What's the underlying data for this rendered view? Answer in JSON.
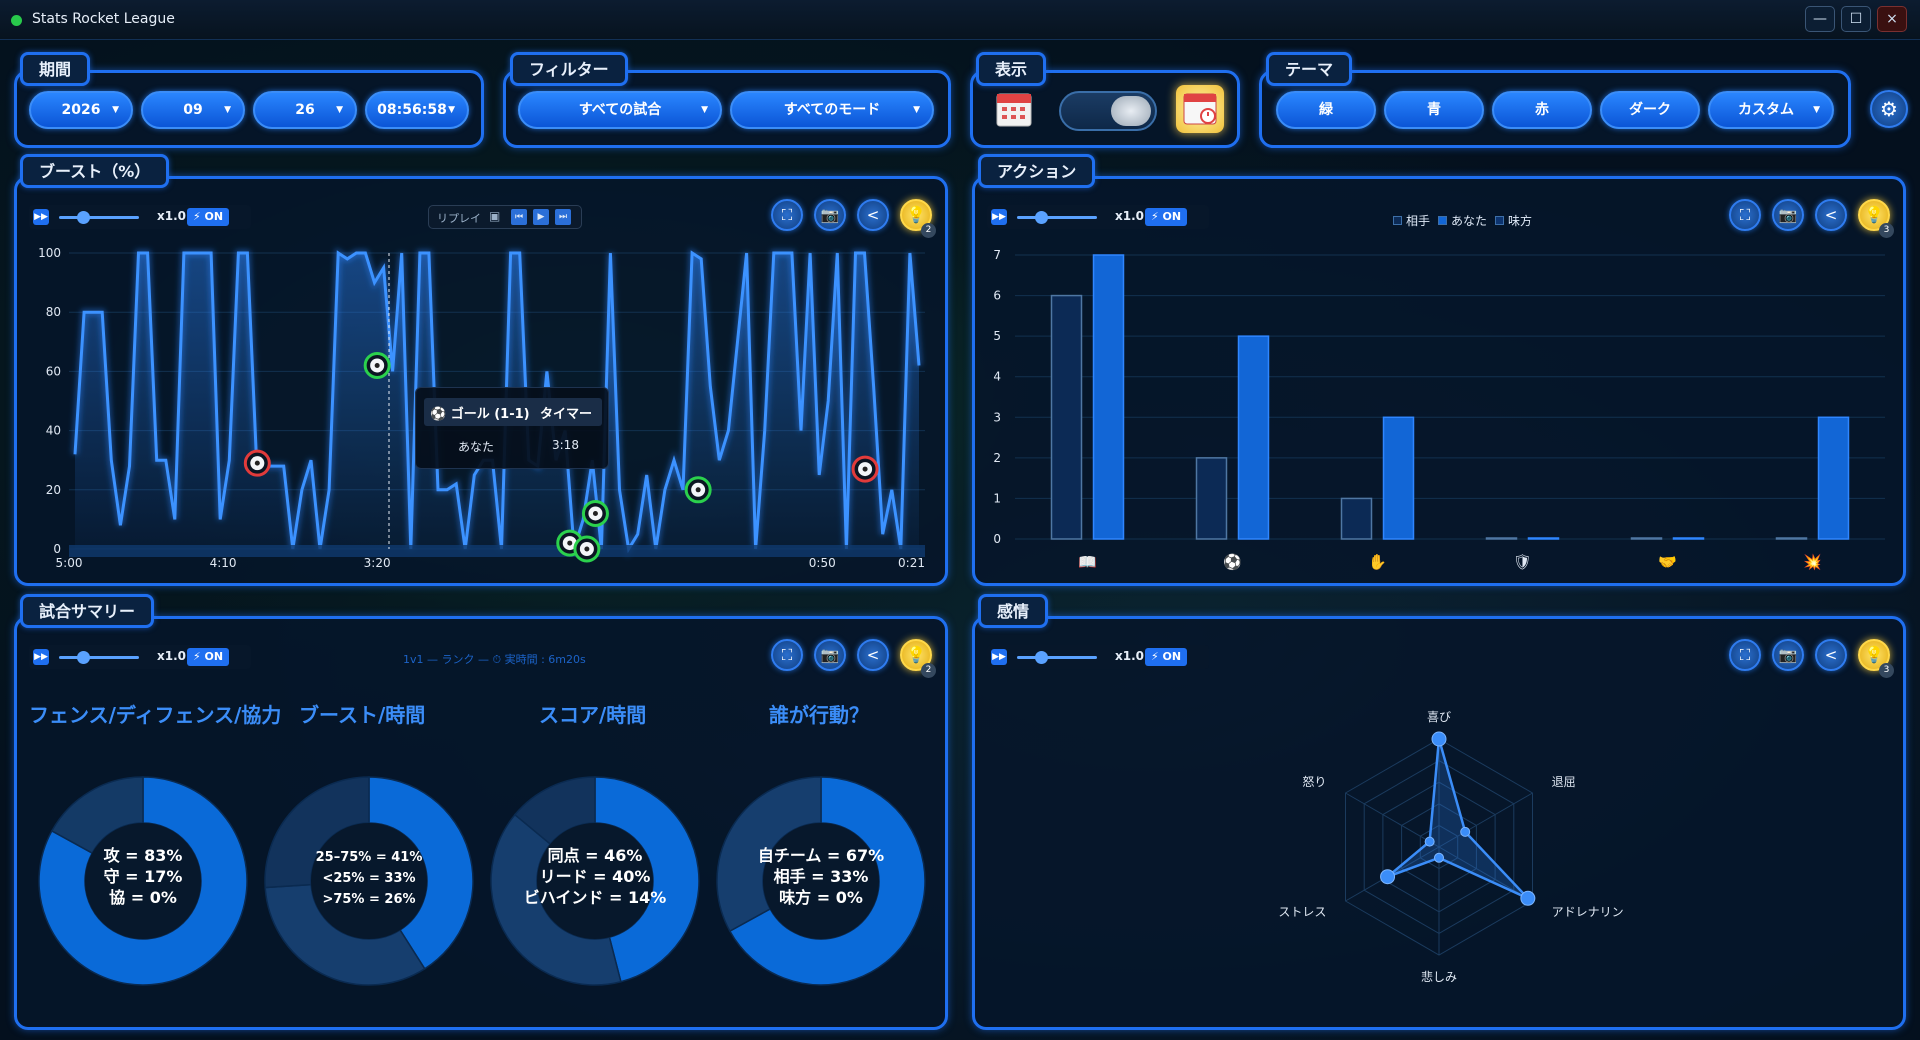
{
  "window": {
    "title": "Stats Rocket League",
    "minimize": "—",
    "maximize": "☐",
    "close": "×"
  },
  "period": {
    "label": "期間",
    "year": "2026",
    "month": "09",
    "day": "26",
    "time": "08:56:58"
  },
  "filter": {
    "label": "フィルター",
    "matches": "すべての試合",
    "modes": "すべてのモード"
  },
  "display": {
    "label": "表示"
  },
  "theme": {
    "label": "テーマ",
    "green": "緑",
    "blue": "青",
    "red": "赤",
    "dark": "ダーク",
    "custom": "カスタム"
  },
  "common": {
    "speed": "x1.0",
    "on": "⚡ ON"
  },
  "boost": {
    "label": "ブースト（%）",
    "replay": "リプレイ",
    "bulb_count": "2",
    "tooltip": {
      "title": "⚽ ゴール (1-1)",
      "col": "タイマー",
      "row_label": "あなた",
      "row_value": "3:18"
    },
    "chart_data": {
      "type": "line",
      "ylim": [
        0,
        100
      ],
      "yticks": [
        "0",
        "20",
        "40",
        "60",
        "80",
        "100"
      ],
      "xticks": [
        "5:00",
        "4:10",
        "3:20",
        "0:50",
        "0:21"
      ],
      "values": [
        32,
        80,
        80,
        80,
        30,
        8,
        28,
        100,
        100,
        30,
        30,
        10,
        100,
        100,
        100,
        100,
        10,
        30,
        100,
        100,
        30,
        28,
        28,
        28,
        0,
        20,
        30,
        0,
        20,
        100,
        98,
        100,
        100,
        90,
        95,
        60,
        100,
        0,
        100,
        100,
        20,
        20,
        22,
        0,
        25,
        30,
        30,
        0,
        100,
        100,
        30,
        28,
        60,
        30,
        40,
        0,
        10,
        30,
        0,
        100,
        20,
        0,
        5,
        25,
        0,
        20,
        30,
        20,
        100,
        98,
        55,
        30,
        40,
        70,
        100,
        0,
        40,
        100,
        100,
        100,
        40,
        100,
        25,
        50,
        100,
        0,
        100,
        100,
        55,
        5,
        20,
        0,
        100,
        62
      ],
      "markers": [
        {
          "kind": "red",
          "x": 0.22,
          "y": 29
        },
        {
          "kind": "green",
          "x": 0.36,
          "y": 62
        },
        {
          "kind": "green",
          "x": 0.585,
          "y": 2
        },
        {
          "kind": "green",
          "x": 0.605,
          "y": 0
        },
        {
          "kind": "green",
          "x": 0.615,
          "y": 12
        },
        {
          "kind": "green",
          "x": 0.735,
          "y": 20
        },
        {
          "kind": "red",
          "x": 0.93,
          "y": 27
        }
      ]
    }
  },
  "actions": {
    "label": "アクション",
    "bulb_count": "3",
    "chart_data": {
      "type": "bar",
      "ylim": [
        0,
        7
      ],
      "yticks": [
        "0",
        "1",
        "2",
        "3",
        "4",
        "5",
        "6",
        "7"
      ],
      "categories": [
        "book-icon",
        "ball-icon",
        "hand-icon",
        "shield-icon",
        "handshake-icon",
        "explosion-icon"
      ],
      "category_glyphs": [
        "📖",
        "⚽",
        "✋",
        "🛡",
        "🤝",
        "💥"
      ],
      "series": [
        {
          "name": "相手",
          "color": "#0c2a55",
          "values": [
            6,
            2,
            1,
            0,
            0,
            0
          ]
        },
        {
          "name": "あなた",
          "color": "#1266d6",
          "values": [
            7,
            5,
            3,
            0,
            0,
            3
          ]
        },
        {
          "name": "味方",
          "color": "#0d3470",
          "values": [
            0,
            0,
            0,
            0,
            0,
            0
          ]
        }
      ]
    }
  },
  "summary": {
    "label": "試合サマリー",
    "subtitle": "1v1 — ランク — ⏱ 実時間 : 6m20s",
    "bulb_count": "2",
    "donuts": [
      {
        "title": "フェンス/ディフェンス/協力",
        "lines": [
          "攻 = 83%",
          "守 = 17%",
          "協 = 0%"
        ],
        "chart_data": {
          "type": "pie",
          "values": [
            83,
            17,
            0
          ],
          "colors": [
            "#0a6ad8",
            "#143a66",
            "#1d4a80"
          ]
        }
      },
      {
        "title": "ブースト/時間",
        "lines": [
          "25–75% = 41%",
          "<25% = 33%",
          ">75% = 26%"
        ],
        "chart_data": {
          "type": "pie",
          "values": [
            41,
            33,
            26
          ],
          "colors": [
            "#0a6ad8",
            "#163e6e",
            "#12335c"
          ]
        }
      },
      {
        "title": "スコア/時間",
        "lines": [
          "同点 = 46%",
          "リード = 40%",
          "ビハインド = 14%"
        ],
        "chart_data": {
          "type": "pie",
          "values": [
            46,
            40,
            14
          ],
          "colors": [
            "#0a6ad8",
            "#163e6e",
            "#12335c"
          ]
        }
      },
      {
        "title": "誰が行動？",
        "lines": [
          "自チーム = 67%",
          "相手 = 33%",
          "味方 = 0%"
        ],
        "chart_data": {
          "type": "pie",
          "values": [
            67,
            33,
            0
          ],
          "colors": [
            "#0a6ad8",
            "#163e6e",
            "#12335c"
          ]
        }
      }
    ]
  },
  "emotion": {
    "label": "感情",
    "bulb_count": "3",
    "chart_data": {
      "type": "radar",
      "axes": [
        "喜び",
        "退屈",
        "アドレナリン",
        "悲しみ",
        "ストレス",
        "怒り"
      ],
      "values": [
        1.0,
        0.28,
        0.95,
        0.1,
        0.55,
        0.1
      ],
      "max": 1
    }
  }
}
